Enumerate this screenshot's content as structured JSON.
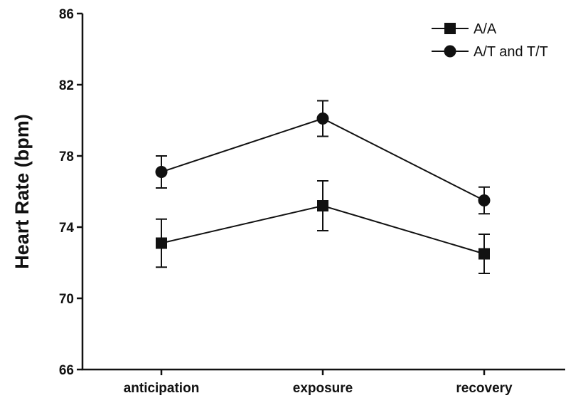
{
  "chart_data": {
    "type": "line",
    "title": "",
    "xlabel": "",
    "ylabel": "Heart Rate (bpm)",
    "categories": [
      "anticipation",
      "exposure",
      "recovery"
    ],
    "ylim": [
      66,
      86
    ],
    "yticks": [
      "66",
      "70",
      "74",
      "78",
      "82",
      "86"
    ],
    "grid": false,
    "legend_position": "top-right",
    "series": [
      {
        "name": "A/A",
        "marker": "square",
        "values": [
          73.1,
          75.2,
          72.5
        ],
        "error": [
          1.35,
          1.4,
          1.1
        ]
      },
      {
        "name": "A/T and T/T",
        "marker": "circle",
        "values": [
          77.1,
          80.1,
          75.5
        ],
        "error": [
          0.9,
          1.0,
          0.75
        ]
      }
    ]
  }
}
